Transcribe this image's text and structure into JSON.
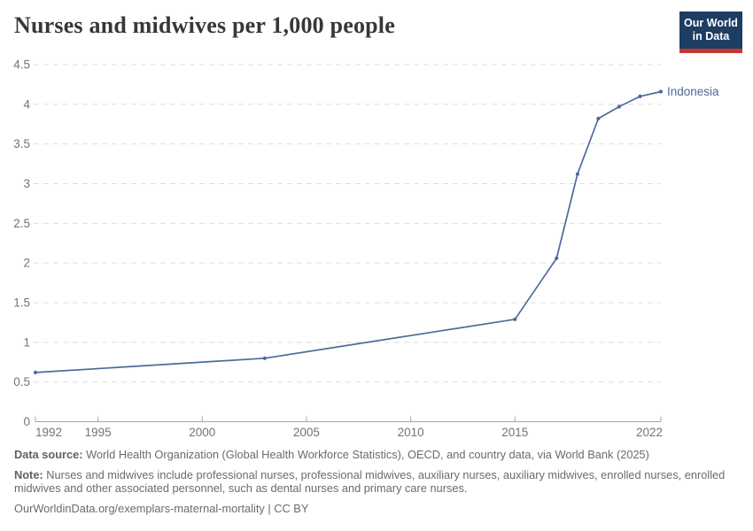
{
  "header": {
    "title": "Nurses and midwives per 1,000 people",
    "logo": {
      "line1": "Our World",
      "line2": "in Data"
    }
  },
  "chart_data": {
    "type": "line",
    "title": "Nurses and midwives per 1,000 people",
    "xlabel": "",
    "ylabel": "",
    "xlim": [
      1992,
      2022
    ],
    "ylim": [
      0,
      4.5
    ],
    "x_ticks": [
      1992,
      1995,
      2000,
      2005,
      2010,
      2015,
      2022
    ],
    "y_ticks": [
      0,
      0.5,
      1,
      1.5,
      2,
      2.5,
      3,
      3.5,
      4,
      4.5
    ],
    "grid": true,
    "legend_position": "end-of-line",
    "series": [
      {
        "name": "Indonesia",
        "color": "#4c6a9c",
        "points": [
          {
            "x": 1992,
            "y": 0.62
          },
          {
            "x": 2003,
            "y": 0.8
          },
          {
            "x": 2015,
            "y": 1.29
          },
          {
            "x": 2017,
            "y": 2.06
          },
          {
            "x": 2018,
            "y": 3.12
          },
          {
            "x": 2019,
            "y": 3.82
          },
          {
            "x": 2020,
            "y": 3.97
          },
          {
            "x": 2021,
            "y": 4.1
          },
          {
            "x": 2022,
            "y": 4.16
          }
        ]
      }
    ],
    "colors": {
      "grid": "#dedede",
      "axis": "#a9a9a9",
      "tick_label": "#737373"
    }
  },
  "footer": {
    "data_source_label": "Data source:",
    "data_source_text": " World Health Organization (Global Health Workforce Statistics), OECD, and country data, via World Bank (2025)",
    "note_label": "Note:",
    "note_text": " Nurses and midwives include professional nurses, professional midwives, auxiliary nurses, auxiliary midwives, enrolled nurses, enrolled midwives and other associated personnel, such as dental nurses and primary care nurses.",
    "citation": "OurWorldinData.org/exemplars-maternal-mortality | CC BY"
  }
}
